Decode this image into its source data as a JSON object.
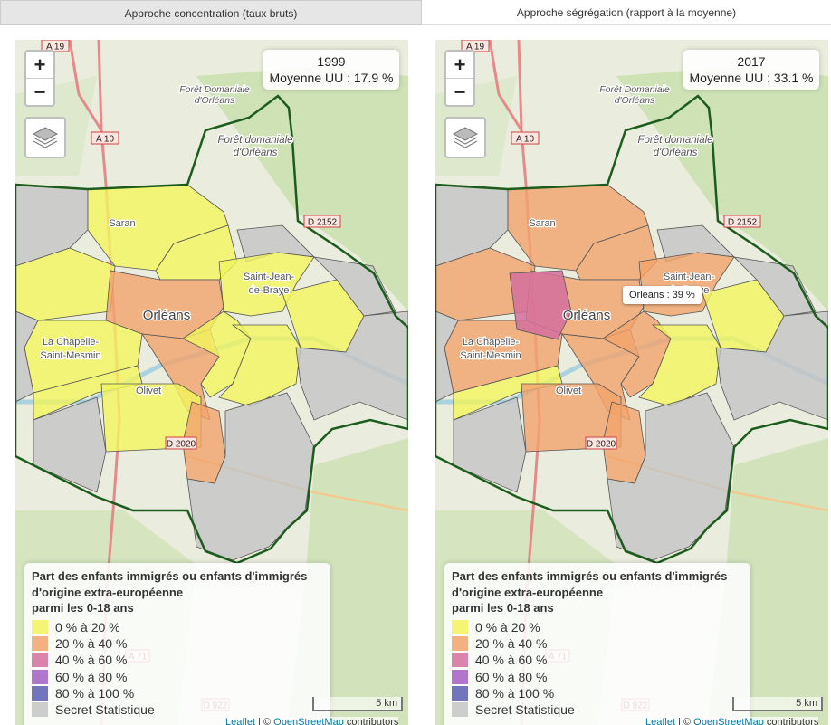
{
  "tabs": [
    "Approche concentration (taux bruts)",
    "Approche ségrégation (rapport à la moyenne)"
  ],
  "controls": {
    "zoom_in": "+",
    "zoom_out": "−"
  },
  "map_labels": {
    "a19": "A 19",
    "a10": "A 10",
    "d2152": "D 2152",
    "d2020": "D 2020",
    "a71": "A 71",
    "d922": "D 922",
    "foret1": [
      "Forêt Domaniale",
      "d'Orléans"
    ],
    "foret2": [
      "Forêt domaniale",
      "d'Orléans"
    ],
    "saran": "Saran",
    "sjb": [
      "Saint-Jean-",
      "de-Braye"
    ],
    "orleans": "Orléans",
    "chapelle": [
      "La Chapelle-",
      "Saint-Mesmin"
    ],
    "olivet": "Olivet"
  },
  "legend": {
    "title": [
      "Part des enfants immigrés ou enfants d'immigrés",
      "d'origine extra-européenne",
      "parmi les 0-18 ans"
    ],
    "items": [
      {
        "label": "0 % à 20 %",
        "color": "#f3f55c"
      },
      {
        "label": "20 % à 40 %",
        "color": "#f2a36c"
      },
      {
        "label": "40 % à 60 %",
        "color": "#d56f9e"
      },
      {
        "label": "60 % à 80 %",
        "color": "#a35dc4"
      },
      {
        "label": "80 % à 100 %",
        "color": "#5b5cb4"
      },
      {
        "label": "Secret Statistique",
        "color": "#c4c4c4"
      }
    ]
  },
  "scale": "5 km",
  "attribution": [
    "Leaflet",
    " | © ",
    "OpenStreetMap",
    " contributors"
  ],
  "maps": [
    {
      "info": {
        "year": "1999",
        "mean": "Moyenne UU : 17.9 %"
      }
    },
    {
      "info": {
        "year": "2017",
        "mean": "Moyenne UU : 33.1 %"
      },
      "tooltip": "Orléans : 39 %"
    }
  ]
}
